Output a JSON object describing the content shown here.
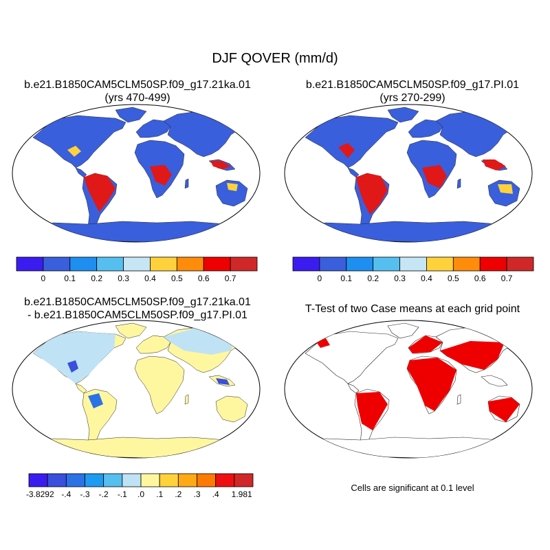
{
  "figure_title": "DJF QOVER (mm/d)",
  "panels": [
    {
      "title_line1": "b.e21.B1850CAM5CLM50SP.f09_g17.21ka.01",
      "title_line2": "(yrs 470-499)"
    },
    {
      "title_line1": "b.e21.B1850CAM5CLM50SP.f09_g17.PI.01",
      "title_line2": "(yrs 270-299)"
    },
    {
      "title_line1": "b.e21.B1850CAM5CLM50SP.f09_g17.21ka.01",
      "title_line2": "- b.e21.B1850CAM5CLM50SP.f09_g17.PI.01"
    },
    {
      "title_line1": "T-Test of two Case means at each grid point",
      "note": "Cells are significant at 0.1 level"
    }
  ],
  "colorbar_top": {
    "labels": [
      "0",
      "0.1",
      "0.2",
      "0.3",
      "0.4",
      "0.5",
      "0.6",
      "0.7"
    ],
    "colors": [
      "#3b1cf0",
      "#3a5fdc",
      "#1e8ff0",
      "#55bfef",
      "#c6e6f6",
      "#ffd23c",
      "#ff8c0a",
      "#ee0000",
      "#d02828"
    ]
  },
  "colorbar_diff": {
    "labels": [
      "-3.8292",
      "-.4",
      "-.3",
      "-.2",
      "-.1",
      ".0",
      ".1",
      ".2",
      ".3",
      ".4",
      "1.981"
    ],
    "colors": [
      "#3b1cf0",
      "#3a4fdc",
      "#2a72e6",
      "#1e9af0",
      "#55bfef",
      "#bfe2f5",
      "#fff7a0",
      "#ffd23c",
      "#ffaa14",
      "#ff7a00",
      "#ee1010",
      "#d02828"
    ]
  },
  "map_colors": {
    "ocean": "#ffffff",
    "low_runoff": "#3a5fdc",
    "high_runoff": "#e01818",
    "mid_runoff": "#ffd23c",
    "diff_positive_small": "#fff7a0",
    "diff_negative_small": "#bfe2f5",
    "significant": "#ee0000"
  }
}
